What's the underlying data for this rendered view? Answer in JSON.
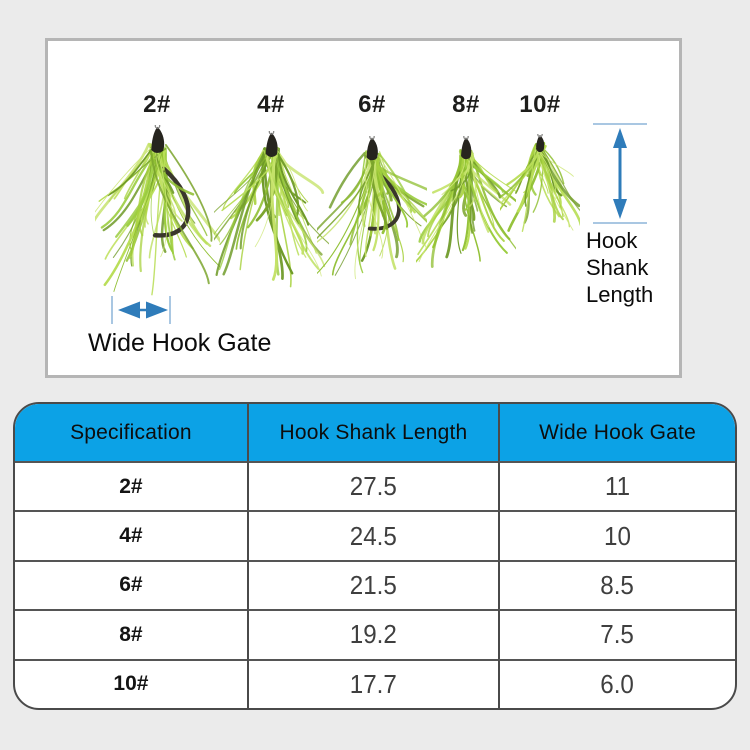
{
  "page_background": "#ebebeb",
  "product_panel": {
    "size_labels": [
      "2#",
      "4#",
      "6#",
      "8#",
      "10#"
    ],
    "shank_annotation_lines": [
      "Hook",
      "Shank",
      "Length"
    ],
    "gate_annotation": "Wide Hook Gate",
    "colors": {
      "arrow_blue": "#2f7cba",
      "cap_blue": "#a9c7e2",
      "feather_green": "#8fc136",
      "hook_head_black": "#26241e"
    }
  },
  "spec_table": {
    "header_bg": "#0ca2e6",
    "headers": [
      "Specification",
      "Hook Shank Length",
      "Wide Hook Gate"
    ],
    "rows": [
      [
        "2#",
        "27.5",
        "11"
      ],
      [
        "4#",
        "24.5",
        "10"
      ],
      [
        "6#",
        "21.5",
        "8.5"
      ],
      [
        "8#",
        "19.2",
        "7.5"
      ],
      [
        "10#",
        "17.7",
        "6.0"
      ]
    ]
  },
  "chart_data": {
    "type": "table",
    "columns": [
      "Specification",
      "Hook Shank Length",
      "Wide Hook Gate"
    ],
    "rows": [
      [
        "2#",
        27.5,
        11
      ],
      [
        "4#",
        24.5,
        10
      ],
      [
        "6#",
        21.5,
        8.5
      ],
      [
        "8#",
        19.2,
        7.5
      ],
      [
        "10#",
        17.7,
        6.0
      ]
    ]
  }
}
